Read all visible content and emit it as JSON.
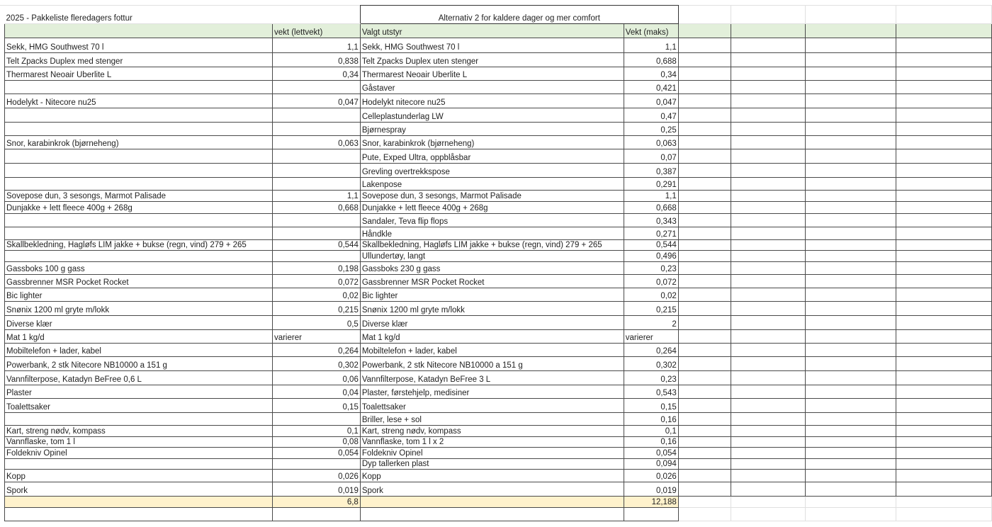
{
  "sheet": {
    "title": "2025 - Pakkeliste fleredagers fottur",
    "alt_title": "Alternativ 2 for kaldere dager og mer comfort",
    "headers": {
      "a": "",
      "b": "vekt (lettvekt)",
      "c": "Valgt utstyr",
      "d": "Vekt (maks)"
    },
    "colors": {
      "header_bg": "#e2efda",
      "total_bg": "#fff2cc"
    },
    "rows": [
      {
        "a": "Sekk, HMG Southwest 70 l",
        "b": "1,1",
        "c": "Sekk, HMG Southwest 70 l",
        "d": "1,1"
      },
      {
        "a": "Telt Zpacks Duplex med stenger",
        "b": "0,838",
        "c": "Telt Zpacks Duplex uten stenger",
        "d": "0,688"
      },
      {
        "a": "Thermarest Neoair Uberlite L",
        "b": "0,34",
        "c": "Thermarest Neoair Uberlite L",
        "d": "0,34"
      },
      {
        "a": "",
        "b": "",
        "c": "Gåstaver",
        "d": "0,421"
      },
      {
        "a": "Hodelykt - Nitecore nu25",
        "b": "0,047",
        "c": "Hodelykt nitecore nu25",
        "d": "0,047"
      },
      {
        "a": "",
        "b": "",
        "c": "Celleplastunderlag LW",
        "d": "0,47"
      },
      {
        "a": "",
        "b": "",
        "c": "Bjørnespray",
        "d": "0,25"
      },
      {
        "a": "Snor, karabinkrok (bjørneheng)",
        "b": "0,063",
        "c": "Snor, karabinkrok (bjørneheng)",
        "d": "0,063"
      },
      {
        "a": "",
        "b": "",
        "c": "Pute, Exped Ultra, oppblåsbar",
        "d": "0,07"
      },
      {
        "a": "",
        "b": "",
        "c": "Grevling overtrekkspose",
        "d": "0,387"
      },
      {
        "a": "",
        "b": "",
        "c": "Lakenpose",
        "d": "0,291"
      },
      {
        "a": "Sovepose dun, 3 sesongs, Marmot Palisade",
        "b": "1,1",
        "c": "Sovepose dun, 3 sesongs, Marmot Palisade",
        "d": "1,1"
      },
      {
        "a": "Dunjakke + lett fleece 400g + 268g",
        "b": "0,668",
        "c": "Dunjakke + lett fleece 400g + 268g",
        "d": "0,668"
      },
      {
        "a": "",
        "b": "",
        "c": "Sandaler, Teva flip flops",
        "d": "0,343"
      },
      {
        "a": "",
        "b": "",
        "c": "Håndkle",
        "d": "0,271"
      },
      {
        "a": "Skallbekledning, Hagløfs LIM jakke + bukse (regn, vind) 279 + 265",
        "b": "0,544",
        "c": "Skallbekledning, Hagløfs LIM jakke + bukse (regn, vind) 279 + 265",
        "d": "0,544"
      },
      {
        "a": "",
        "b": "",
        "c": "Ullundertøy, langt",
        "d": "0,496"
      },
      {
        "a": "Gassboks 100 g gass",
        "b": "0,198",
        "c": "Gassboks 230 g gass",
        "d": "0,23"
      },
      {
        "a": "Gassbrenner MSR Pocket Rocket",
        "b": "0,072",
        "c": "Gassbrenner MSR Pocket Rocket",
        "d": "0,072"
      },
      {
        "a": "Bic lighter",
        "b": "0,02",
        "c": "Bic lighter",
        "d": "0,02"
      },
      {
        "a": "Snønix 1200 ml gryte m/lokk",
        "b": "0,215",
        "c": "Snønix 1200 ml gryte m/lokk",
        "d": "0,215"
      },
      {
        "a": "Diverse klær",
        "b": "0,5",
        "c": "Diverse klær",
        "d": "2"
      },
      {
        "a": "Mat 1 kg/d",
        "b": "varierer",
        "c": "Mat 1 kg/d",
        "d": "varierer"
      },
      {
        "a": "Mobiltelefon + lader, kabel",
        "b": "0,264",
        "c": "Mobiltelefon + lader, kabel",
        "d": "0,264"
      },
      {
        "a": "Powerbank, 2 stk Nitecore NB10000 a 151 g",
        "b": "0,302",
        "c": "Powerbank, 2 stk Nitecore NB10000 a 151 g",
        "d": "0,302"
      },
      {
        "a": "Vannfilterpose, Katadyn BeFree 0,6 L",
        "b": "0,06",
        "c": "Vannfilterpose, Katadyn BeFree 3 L",
        "d": "0,23"
      },
      {
        "a": "Plaster",
        "b": "0,04",
        "c": "Plaster, førstehjelp, medisiner",
        "d": "0,543"
      },
      {
        "a": "Toalettsaker",
        "b": "0,15",
        "c": "Toalettsaker",
        "d": "0,15"
      },
      {
        "a": "",
        "b": "",
        "c": "Briller, lese + sol",
        "d": "0,16"
      },
      {
        "a": "Kart, streng nødv, kompass",
        "b": "0,1",
        "c": "Kart, streng nødv, kompass",
        "d": "0,1"
      },
      {
        "a": "Vannflaske, tom 1 l",
        "b": "0,08",
        "c": "Vannflaske, tom 1 l x 2",
        "d": "0,16"
      },
      {
        "a": "Foldekniv Opinel",
        "b": "0,054",
        "c": "Foldekniv Opinel",
        "d": "0,054"
      },
      {
        "a": "",
        "b": "",
        "c": "Dyp tallerken plast",
        "d": "0,094"
      },
      {
        "a": "Kopp",
        "b": "0,026",
        "c": "Kopp",
        "d": "0,026"
      },
      {
        "a": "Spork",
        "b": "0,019",
        "c": "Spork",
        "d": "0,019"
      }
    ],
    "totals": {
      "b": "6,8",
      "d": "12,188"
    }
  }
}
